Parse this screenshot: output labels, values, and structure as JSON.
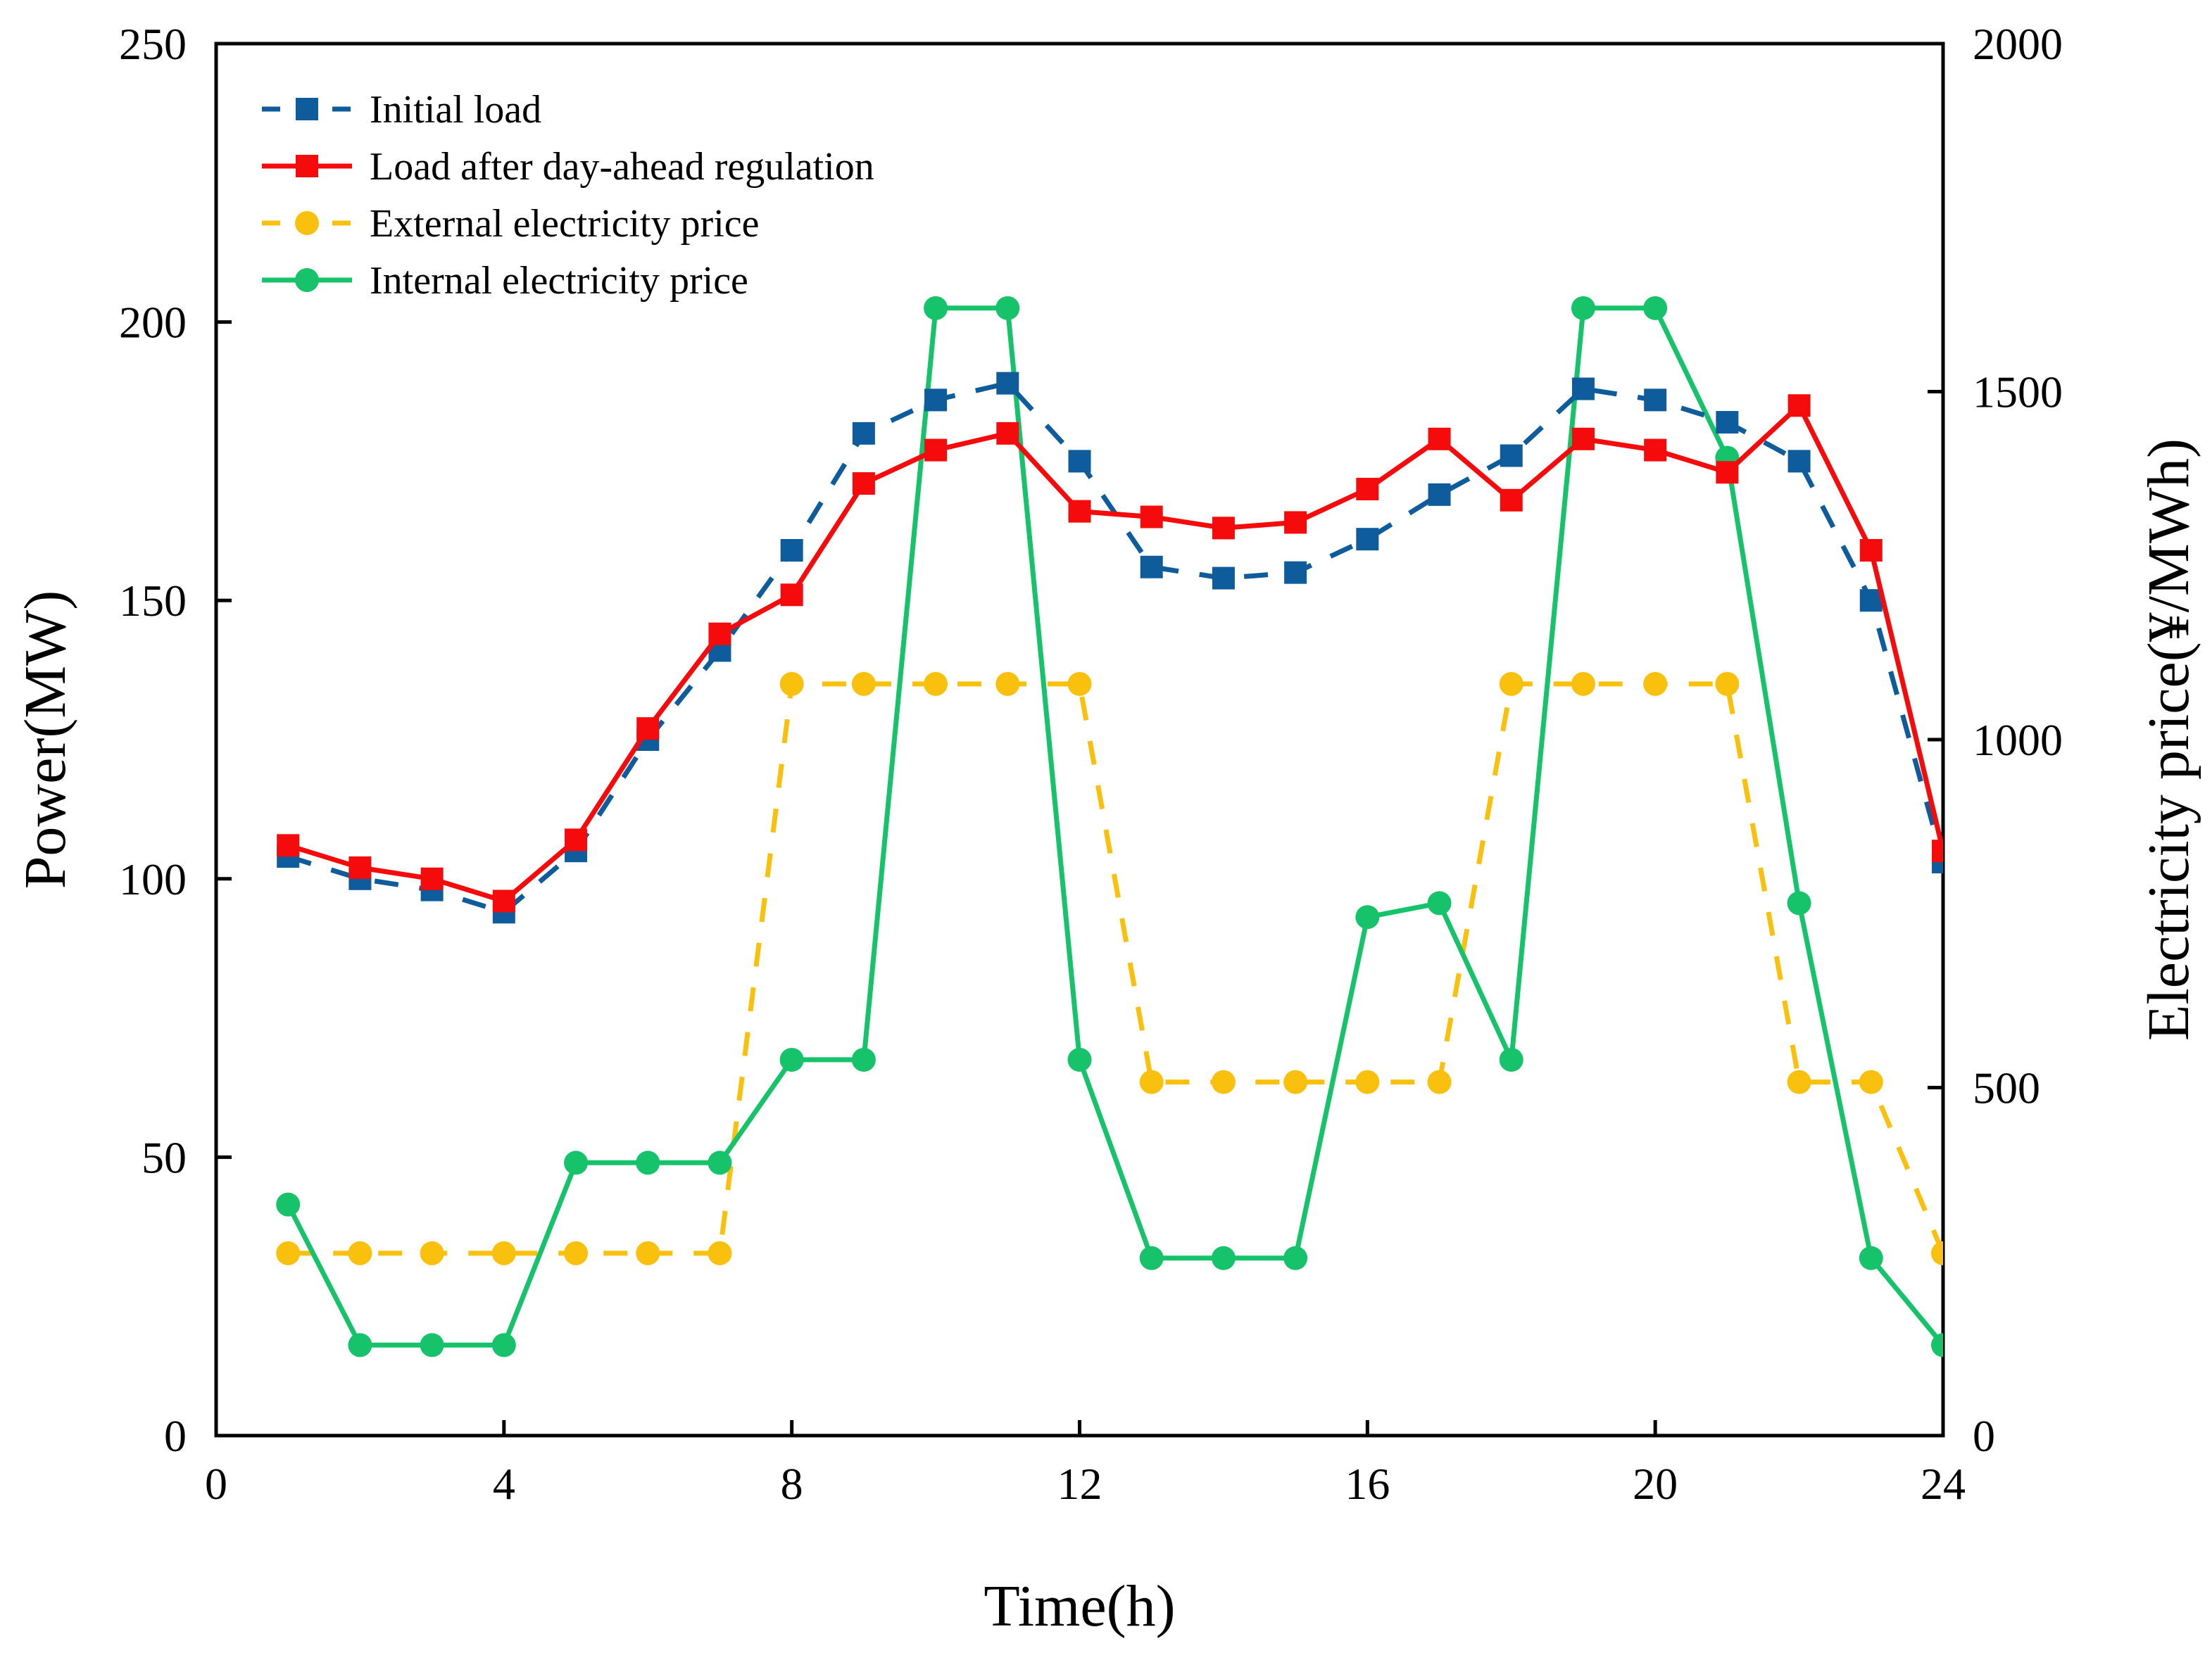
{
  "chart_data": {
    "type": "line",
    "title": "",
    "xlabel": "Time(h)",
    "ylabel_left": "Power(MW)",
    "ylabel_right": "Electricity price(¥/MWh)",
    "xlim": [
      0,
      24
    ],
    "ylim_left": [
      0,
      250
    ],
    "ylim_right": [
      0,
      2000
    ],
    "x_ticks": [
      0,
      4,
      8,
      12,
      16,
      20,
      24
    ],
    "y_left_ticks": [
      0,
      50,
      100,
      150,
      200,
      250
    ],
    "y_right_ticks": [
      0,
      500,
      1000,
      1500,
      2000
    ],
    "grid": false,
    "legend_position": "top-left",
    "x": [
      1,
      2,
      3,
      4,
      5,
      6,
      7,
      8,
      9,
      10,
      11,
      12,
      13,
      14,
      15,
      16,
      17,
      18,
      19,
      20,
      21,
      22,
      23,
      24
    ],
    "series": [
      {
        "name": "Initial load",
        "axis": "left",
        "color": "#0E5C9C",
        "line_style": "dashed",
        "marker": "square",
        "values": [
          104,
          100,
          98,
          94,
          105,
          125,
          141,
          159,
          180,
          186,
          189,
          175,
          156,
          154,
          155,
          161,
          169,
          176,
          188,
          186,
          182,
          175,
          150,
          103
        ]
      },
      {
        "name": "Load after day-ahead regulation",
        "axis": "left",
        "color": "#F50B0B",
        "line_style": "solid",
        "marker": "square",
        "values": [
          106,
          102,
          100,
          96,
          107,
          127,
          144,
          151,
          171,
          177,
          180,
          166,
          165,
          163,
          164,
          170,
          179,
          168,
          179,
          177,
          173,
          185,
          159,
          105
        ]
      },
      {
        "name": "External electricity price",
        "axis": "right",
        "color": "#F9C10E",
        "line_style": "dashed",
        "marker": "circle",
        "values": [
          262,
          262,
          262,
          262,
          262,
          262,
          262,
          1080,
          1080,
          1080,
          1080,
          1080,
          508,
          508,
          508,
          508,
          508,
          1080,
          1080,
          1080,
          1080,
          508,
          508,
          262
        ]
      },
      {
        "name": "Internal electricity price",
        "axis": "right",
        "color": "#16C36A",
        "line_style": "solid",
        "marker": "circle",
        "values": [
          332,
          130,
          130,
          130,
          392,
          392,
          392,
          540,
          540,
          1620,
          1620,
          540,
          255,
          255,
          255,
          745,
          765,
          540,
          1620,
          1620,
          1405,
          765,
          255,
          130
        ]
      }
    ]
  }
}
